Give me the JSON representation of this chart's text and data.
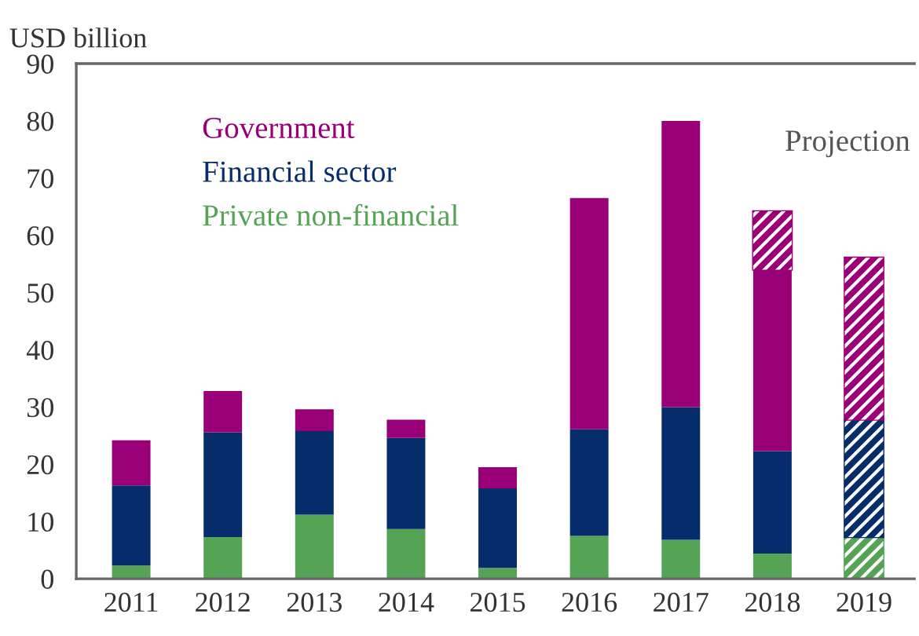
{
  "chart_data": {
    "type": "bar",
    "stacked": true,
    "ylabel": "USD billion",
    "categories": [
      "2011",
      "2012",
      "2013",
      "2014",
      "2015",
      "2016",
      "2017",
      "2018",
      "2019"
    ],
    "series": [
      {
        "name": "Private non-financial",
        "color": "#55a355",
        "values": [
          2.3,
          7.3,
          11.2,
          8.7,
          1.9,
          7.5,
          6.8,
          4.4,
          null
        ]
      },
      {
        "color": "#55a355",
        "values": [
          null,
          null,
          null,
          null,
          null,
          null,
          null,
          null,
          7.3
        ]
      },
      {
        "name": "Financial sector",
        "color": "#062c6b",
        "values": [
          14.0,
          18.3,
          14.6,
          15.9,
          13.9,
          18.6,
          23.2,
          17.9,
          null
        ]
      },
      {
        "color": "#062c6b",
        "values": [
          null,
          null,
          null,
          null,
          null,
          null,
          null,
          null,
          20.5
        ]
      },
      {
        "name": "Government",
        "color": "#990077",
        "values": [
          7.9,
          7.2,
          3.8,
          3.2,
          3.7,
          40.4,
          50.0,
          31.7,
          null
        ]
      },
      {
        "color": "#990077",
        "values": [
          null,
          null,
          null,
          null,
          null,
          null,
          null,
          10.2,
          28.3
        ]
      }
    ],
    "ylim": [
      0,
      90
    ],
    "yticks": [
      0,
      10,
      20,
      30,
      40,
      50,
      60,
      70,
      80,
      90
    ],
    "grid": false,
    "legend": "top left",
    "annotations": [
      "Projection"
    ]
  }
}
